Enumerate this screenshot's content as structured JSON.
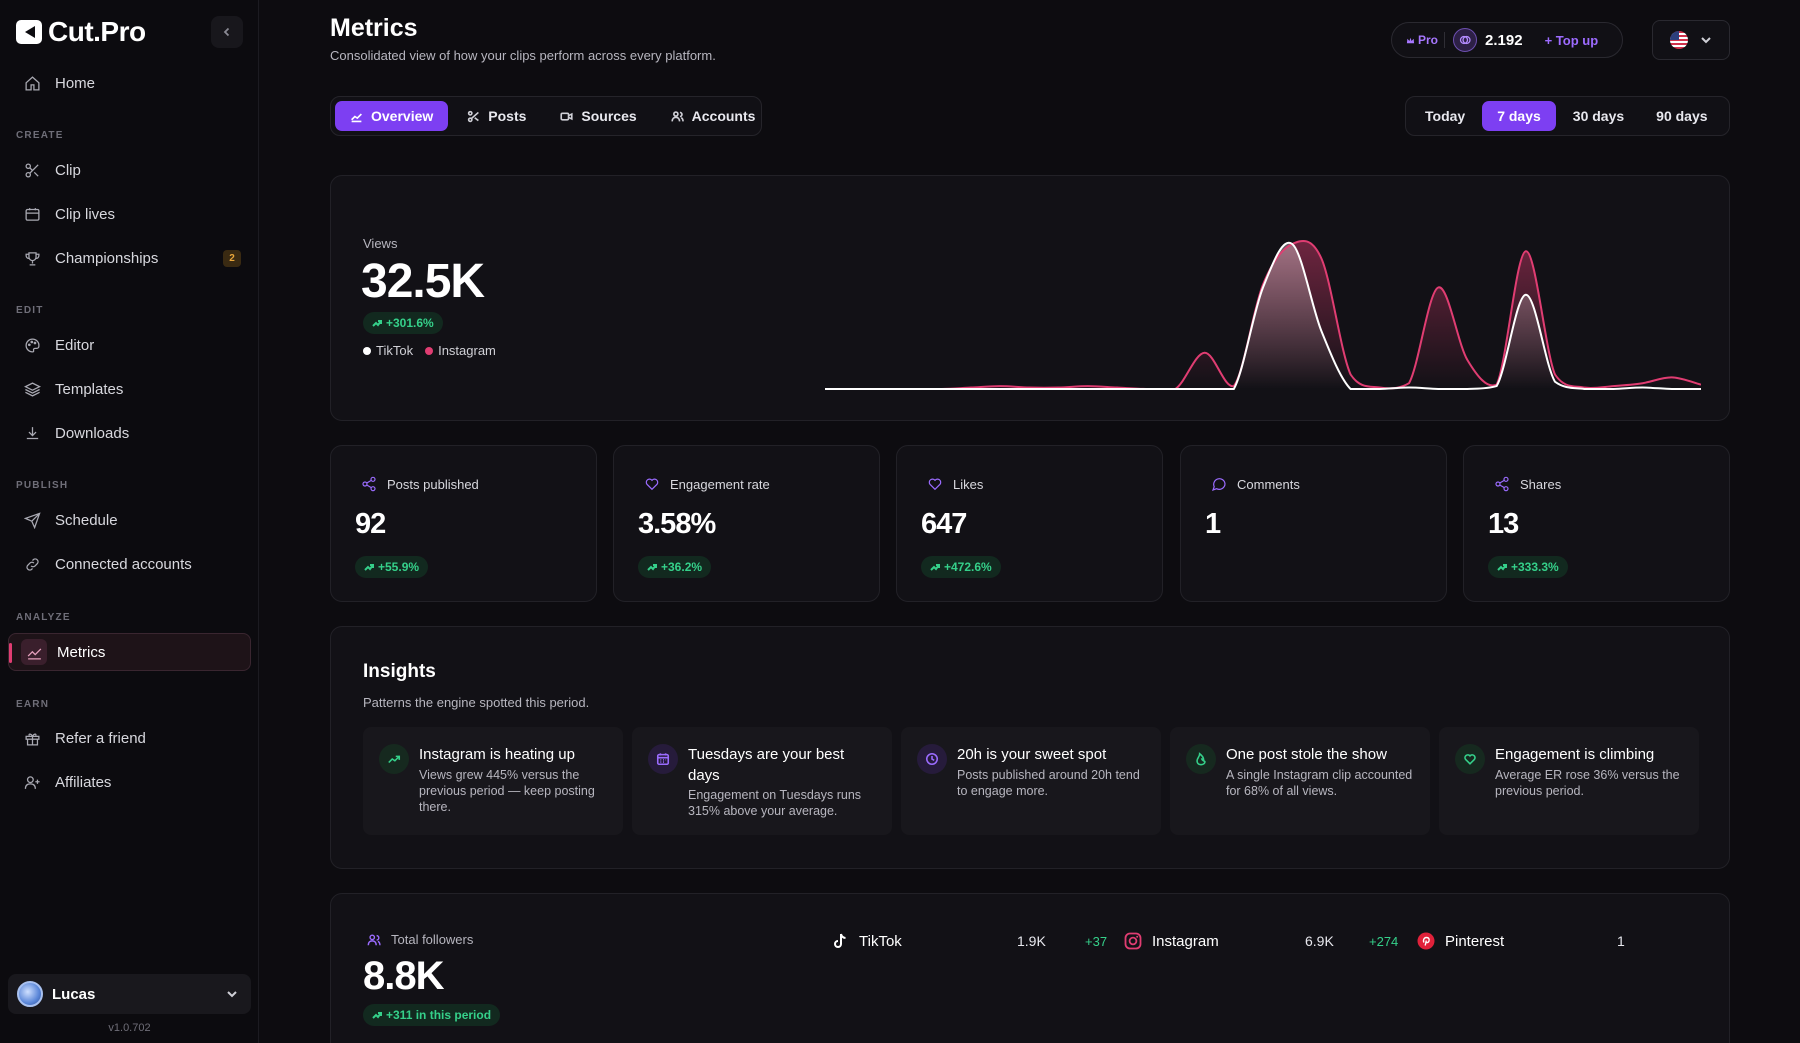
{
  "app": {
    "name": "Cut.Pro",
    "version": "v1.0.702"
  },
  "sidebar": {
    "sections": {
      "create": "CREATE",
      "edit": "EDIT",
      "publish": "PUBLISH",
      "analyze": "ANALYZE",
      "earn": "EARN"
    },
    "items": {
      "home": "Home",
      "clip": "Clip",
      "clip_lives": "Clip lives",
      "championships": "Championships",
      "championships_badge": "2",
      "editor": "Editor",
      "templates": "Templates",
      "downloads": "Downloads",
      "schedule": "Schedule",
      "connected_accounts": "Connected accounts",
      "metrics": "Metrics",
      "refer": "Refer a friend",
      "affiliates": "Affiliates"
    },
    "active": "metrics",
    "user": {
      "name": "Lucas"
    }
  },
  "header": {
    "title": "Metrics",
    "subtitle": "Consolidated view of how your clips perform across every platform.",
    "plan": "Pro",
    "credits": "2.192",
    "topup": "Top up"
  },
  "tabs": [
    {
      "label": "Overview",
      "active": true
    },
    {
      "label": "Posts",
      "active": false
    },
    {
      "label": "Sources",
      "active": false
    },
    {
      "label": "Accounts",
      "active": false
    }
  ],
  "periods": [
    {
      "label": "Today",
      "active": false
    },
    {
      "label": "7 days",
      "active": true
    },
    {
      "label": "30 days",
      "active": false
    },
    {
      "label": "90 days",
      "active": false
    }
  ],
  "views": {
    "label": "Views",
    "value": "32.5K",
    "delta": "+301.6%",
    "legend": [
      {
        "name": "TikTok",
        "color": "#ffffff"
      },
      {
        "name": "Instagram",
        "color": "#e03d72"
      }
    ]
  },
  "chart_data": {
    "type": "area",
    "x": [
      0,
      1,
      2,
      3,
      4,
      5,
      6,
      7,
      8,
      9,
      10,
      11,
      12,
      13,
      14,
      15,
      16,
      17,
      18,
      19,
      20,
      21,
      22,
      23,
      24,
      25,
      26,
      27,
      28,
      29,
      30
    ],
    "series": [
      {
        "name": "TikTok",
        "color": "#ffffff",
        "values": [
          0,
          0,
          0,
          0,
          0,
          0,
          0,
          0,
          0,
          0,
          0,
          0,
          0,
          0,
          0,
          70,
          100,
          40,
          0,
          0,
          1,
          0,
          0,
          2,
          65,
          5,
          0,
          0,
          1,
          0,
          0
        ]
      },
      {
        "name": "Instagram",
        "color": "#e03d72",
        "values": [
          0,
          0,
          0,
          0,
          0,
          1,
          2,
          1,
          1,
          2,
          1,
          0,
          0,
          25,
          2,
          72,
          100,
          90,
          10,
          1,
          4,
          70,
          20,
          3,
          95,
          10,
          1,
          2,
          4,
          8,
          3
        ]
      }
    ]
  },
  "stats": [
    {
      "key": "posts",
      "label": "Posts published",
      "value": "92",
      "delta": "+55.9%",
      "icon": "share-icon"
    },
    {
      "key": "engagement",
      "label": "Engagement rate",
      "value": "3.58%",
      "delta": "+36.2%",
      "icon": "heart-icon"
    },
    {
      "key": "likes",
      "label": "Likes",
      "value": "647",
      "delta": "+472.6%",
      "icon": "heart-icon"
    },
    {
      "key": "comments",
      "label": "Comments",
      "value": "1",
      "delta": "",
      "icon": "comment-icon"
    },
    {
      "key": "shares",
      "label": "Shares",
      "value": "13",
      "delta": "+333.3%",
      "icon": "share-icon"
    }
  ],
  "insights": {
    "title": "Insights",
    "subtitle": "Patterns the engine spotted this period.",
    "items": [
      {
        "title": "Instagram is heating up",
        "body": "Views grew 445% versus the previous period — keep posting there.",
        "icon": "trend-up-icon",
        "color": "#35d08a",
        "bg": "#16291f"
      },
      {
        "title": "Tuesdays are your best days",
        "body": "Engagement on Tuesdays runs 315% above your average.",
        "icon": "calendar-icon",
        "color": "#9b6cff",
        "bg": "#261b3b"
      },
      {
        "title": "20h is your sweet spot",
        "body": "Posts published around 20h tend to engage more.",
        "icon": "clock-icon",
        "color": "#9b6cff",
        "bg": "#261b3b"
      },
      {
        "title": "One post stole the show",
        "body": "A single Instagram clip accounted for 68% of all views.",
        "icon": "flame-icon",
        "color": "#35d08a",
        "bg": "#16291f"
      },
      {
        "title": "Engagement is climbing",
        "body": "Average ER rose 36% versus the previous period.",
        "icon": "heart-icon",
        "color": "#35d08a",
        "bg": "#16291f"
      }
    ]
  },
  "followers": {
    "label": "Total followers",
    "value": "8.8K",
    "delta": "+311 in this period",
    "platforms": [
      {
        "name": "TikTok",
        "count": "1.9K",
        "change": "+37",
        "icon": "tiktok-icon"
      },
      {
        "name": "Instagram",
        "count": "6.9K",
        "change": "+274",
        "icon": "instagram-icon"
      },
      {
        "name": "Pinterest",
        "count": "1",
        "change": "",
        "icon": "pinterest-icon"
      }
    ]
  }
}
